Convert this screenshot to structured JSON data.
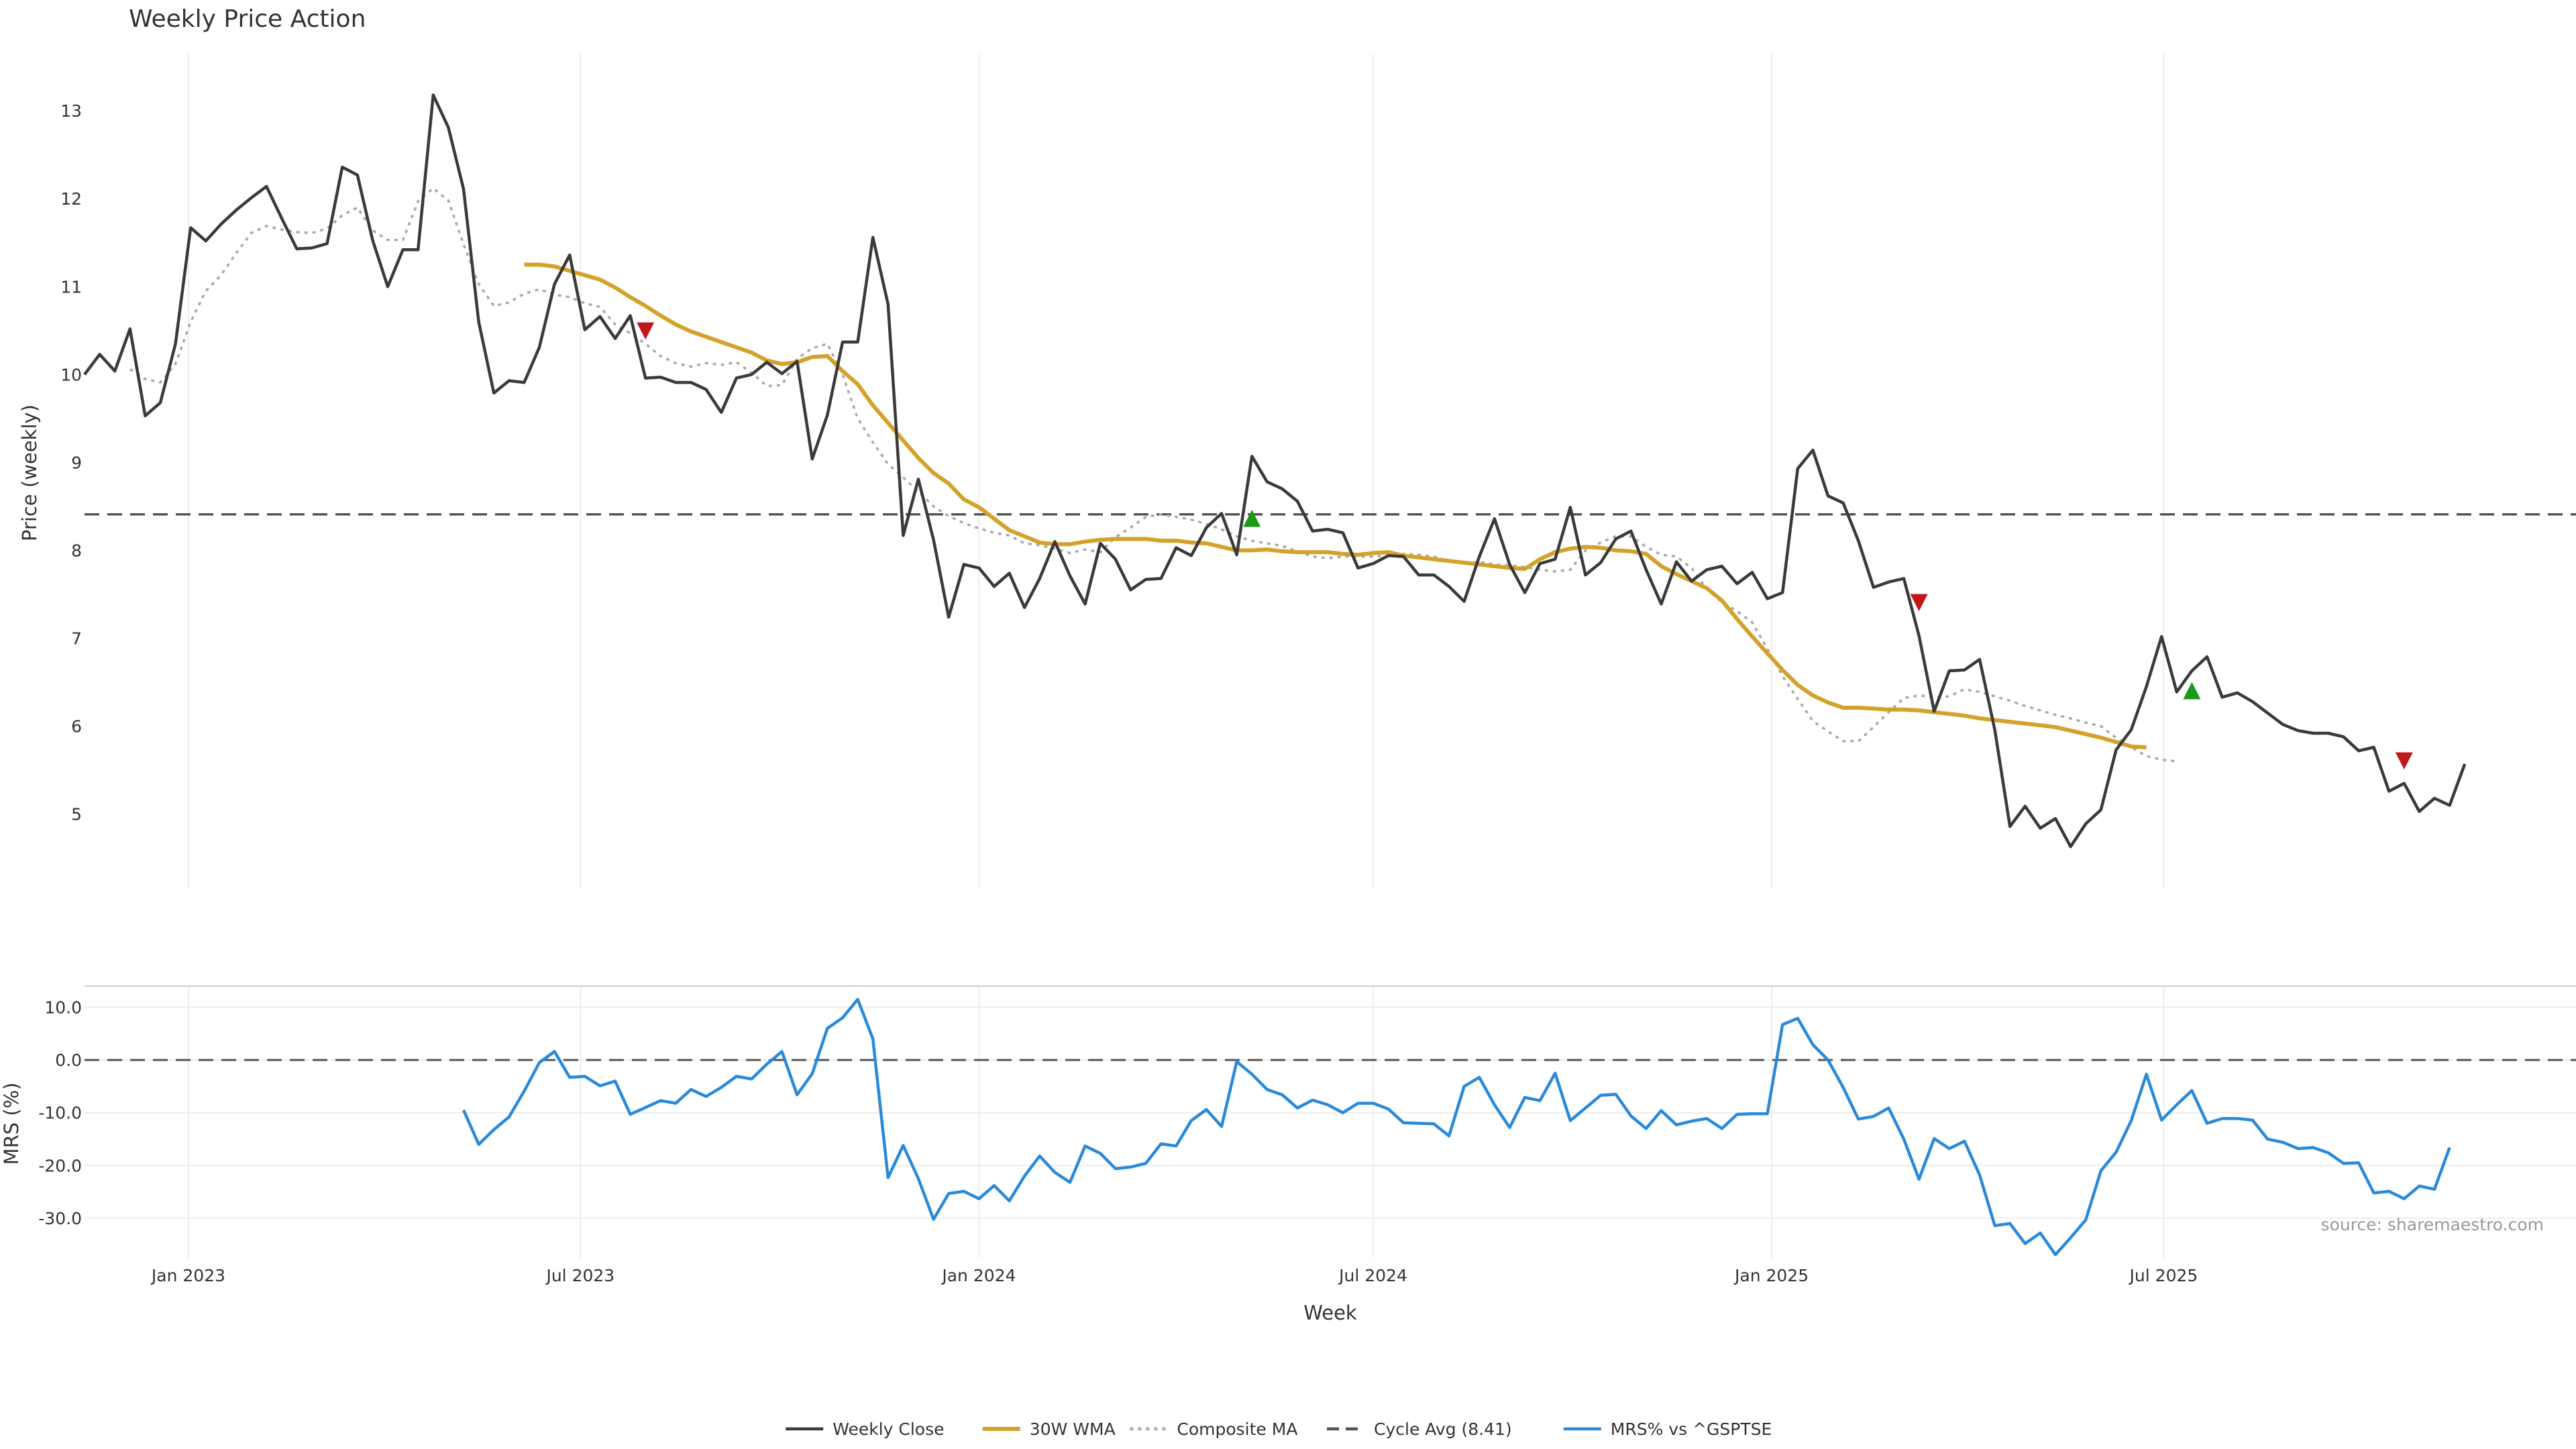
{
  "chart_data": {
    "type": "line",
    "title": "Weekly Price Action",
    "source": "source: sharemaestro.com",
    "xlabel": "Week",
    "x_ticks": [
      "Jan 2023",
      "Jul 2023",
      "Jan 2024",
      "Jul 2024",
      "Jan 2025",
      "Jul 2025"
    ],
    "x_start": "2022-11-14",
    "x_range": [
      "2022-11-14",
      "2025-11-24"
    ],
    "colors": {
      "close": "#3a3a3a",
      "wma": "#d4a22a",
      "composite": "#aaaaaa",
      "cycle": "#555555",
      "mrs": "#2a8ad8",
      "signal_up": "#1a9a1a",
      "signal_down": "#c0161c",
      "grid": "#e8e8e8"
    },
    "price_panel": {
      "ylabel": "Price (weekly)",
      "ylim": [
        4.15,
        13.65
      ],
      "y_ticks": [
        5,
        6,
        7,
        8,
        9,
        10,
        11,
        12,
        13
      ],
      "cycle_avg": 8.41,
      "series": [
        {
          "name": "Weekly Close",
          "key": "close",
          "start_index": 0,
          "values": [
            10.0,
            10.23,
            10.04,
            10.52,
            9.53,
            9.68,
            10.35,
            11.67,
            11.52,
            11.71,
            11.87,
            12.01,
            12.14,
            11.78,
            11.43,
            11.44,
            11.49,
            12.36,
            12.27,
            11.53,
            11.0,
            11.42,
            11.42,
            13.18,
            12.81,
            12.11,
            10.6,
            9.79,
            9.93,
            9.91,
            10.31,
            11.03,
            11.36,
            10.51,
            10.66,
            10.41,
            10.67,
            9.96,
            9.97,
            9.91,
            9.91,
            9.83,
            9.57,
            9.96,
            10.0,
            10.14,
            10.01,
            10.15,
            9.04,
            9.54,
            10.37,
            10.37,
            11.56,
            10.8,
            8.17,
            8.81,
            8.12,
            7.24,
            7.84,
            7.8,
            7.59,
            7.74,
            7.35,
            7.68,
            8.1,
            7.71,
            7.39,
            8.08,
            7.9,
            7.55,
            7.67,
            7.68,
            8.03,
            7.94,
            8.26,
            8.42,
            7.95,
            9.07,
            8.78,
            8.7,
            8.56,
            8.22,
            8.24,
            8.2,
            7.8,
            7.85,
            7.94,
            7.93,
            7.72,
            7.72,
            7.59,
            7.42,
            7.93,
            8.36,
            7.84,
            7.52,
            7.85,
            7.9,
            8.49,
            7.72,
            7.86,
            8.13,
            8.22,
            7.78,
            7.39,
            7.87,
            7.65,
            7.78,
            7.82,
            7.62,
            7.75,
            7.45,
            7.52,
            8.93,
            9.14,
            8.62,
            8.54,
            8.11,
            7.58,
            7.64,
            7.68,
            7.03,
            6.17,
            6.63,
            6.64,
            6.76,
            5.96,
            4.86,
            5.09,
            4.84,
            4.95,
            4.63,
            4.89,
            5.05,
            5.73,
            5.96,
            6.45,
            7.02,
            6.39,
            6.63,
            6.79,
            6.33,
            6.38,
            6.28,
            6.15,
            6.02,
            5.95,
            5.92,
            5.92,
            5.88,
            5.72,
            5.76,
            5.26,
            5.35,
            5.03,
            5.18,
            5.1,
            5.57
          ]
        },
        {
          "name": "Composite MA",
          "key": "composite",
          "start_index": 3,
          "values": [
            10.06,
            9.95,
            9.91,
            10.12,
            10.6,
            10.95,
            11.13,
            11.38,
            11.61,
            11.69,
            11.65,
            11.62,
            11.61,
            11.66,
            11.81,
            11.9,
            11.64,
            11.53,
            11.53,
            11.97,
            12.12,
            11.98,
            11.48,
            11.03,
            10.78,
            10.82,
            10.92,
            10.97,
            10.91,
            10.88,
            10.81,
            10.77,
            10.57,
            10.47,
            10.35,
            10.21,
            10.13,
            10.09,
            10.13,
            10.11,
            10.14,
            10.02,
            9.87,
            9.88,
            10.18,
            10.3,
            10.35,
            10.0,
            9.5,
            9.23,
            8.98,
            8.83,
            8.67,
            8.5,
            8.39,
            8.31,
            8.25,
            8.2,
            8.17,
            8.08,
            8.06,
            8.02,
            7.97,
            8.01,
            7.98,
            8.15,
            8.26,
            8.38,
            8.41,
            8.38,
            8.35,
            8.3,
            8.24,
            8.16,
            8.11,
            8.08,
            8.05,
            7.99,
            7.93,
            7.91,
            7.93,
            7.93,
            7.93,
            7.94,
            7.96,
            7.95,
            7.93,
            7.88,
            7.85,
            7.87,
            7.84,
            7.83,
            7.81,
            7.78,
            7.76,
            7.78,
            8.0,
            8.09,
            8.16,
            8.16,
            8.04,
            7.95,
            7.93,
            7.8,
            7.56,
            7.41,
            7.31,
            7.18,
            6.88,
            6.57,
            6.31,
            6.06,
            5.94,
            5.83,
            5.83,
            5.99,
            6.16,
            6.32,
            6.35,
            6.33,
            6.34,
            6.42,
            6.39,
            6.34,
            6.29,
            6.23,
            6.18,
            6.13,
            6.09,
            6.04,
            6.0,
            5.87,
            5.76,
            5.66,
            5.62,
            5.6
          ]
        },
        {
          "name": "30W WMA",
          "key": "wma",
          "start_index": 29,
          "values": [
            11.25,
            11.25,
            11.23,
            11.18,
            11.13,
            11.08,
            10.99,
            10.88,
            10.78,
            10.67,
            10.57,
            10.49,
            10.43,
            10.37,
            10.31,
            10.25,
            10.16,
            10.12,
            10.14,
            10.2,
            10.21,
            10.04,
            9.89,
            9.65,
            9.45,
            9.25,
            9.05,
            8.88,
            8.76,
            8.58,
            8.49,
            8.36,
            8.23,
            8.16,
            8.09,
            8.07,
            8.07,
            8.1,
            8.12,
            8.13,
            8.13,
            8.13,
            8.11,
            8.11,
            8.09,
            8.08,
            8.04,
            8.0,
            8.0,
            8.01,
            7.99,
            7.98,
            7.98,
            7.98,
            7.96,
            7.95,
            7.97,
            7.98,
            7.94,
            7.92,
            7.9,
            7.88,
            7.86,
            7.84,
            7.82,
            7.8,
            7.79,
            7.9,
            7.98,
            8.02,
            8.04,
            8.03,
            8.0,
            7.99,
            7.96,
            7.82,
            7.73,
            7.65,
            7.57,
            7.43,
            7.22,
            7.02,
            6.83,
            6.64,
            6.47,
            6.35,
            6.27,
            6.21,
            6.21,
            6.2,
            6.19,
            6.19,
            6.18,
            6.16,
            6.14,
            6.12,
            6.09,
            6.07,
            6.05,
            6.03,
            6.01,
            5.99,
            5.95,
            5.91,
            5.87,
            5.82,
            5.77,
            5.76
          ]
        }
      ],
      "signals": [
        {
          "type": "down",
          "index": 37,
          "value": 10.52
        },
        {
          "type": "up",
          "index": 77,
          "value": 8.34
        },
        {
          "type": "down",
          "index": 121,
          "value": 7.43
        },
        {
          "type": "up",
          "index": 139,
          "value": 6.38
        },
        {
          "type": "down",
          "index": 153,
          "value": 5.63
        }
      ]
    },
    "mrs_panel": {
      "ylabel": "MRS (%)",
      "ylim": [
        -37.5,
        14
      ],
      "y_ticks": [
        10.0,
        0.0,
        -10.0,
        -20.0,
        -30.0
      ],
      "y_tick_labels": [
        "10.0",
        "0.0",
        "-10.0",
        "-20.0",
        "-30.0"
      ],
      "zero_line": 0,
      "series": [
        {
          "name": "MRS% vs ^GSPTSE",
          "key": "mrs",
          "start_index": 25,
          "values": [
            -9.5,
            -16,
            -13.2,
            -10.8,
            -5.9,
            -0.5,
            1.6,
            -3.3,
            -3.1,
            -4.9,
            -4.0,
            -10.3,
            -9.0,
            -7.7,
            -8.2,
            -5.6,
            -6.9,
            -5.2,
            -3.1,
            -3.6,
            -0.8,
            1.6,
            -6.6,
            -2.6,
            6.0,
            8.0,
            11.5,
            4.0,
            -22.3,
            -16.2,
            -22.5,
            -30.2,
            -25.3,
            -24.9,
            -26.3,
            -23.8,
            -26.7,
            -22.0,
            -18.2,
            -21.3,
            -23.2,
            -16.3,
            -17.7,
            -20.6,
            -20.3,
            -19.6,
            -15.9,
            -16.3,
            -11.5,
            -9.4,
            -12.6,
            -0.3,
            -2.7,
            -5.6,
            -6.6,
            -9.1,
            -7.6,
            -8.5,
            -10.0,
            -8.2,
            -8.2,
            -9.3,
            -11.9,
            -12.0,
            -12.1,
            -14.4,
            -5.0,
            -3.3,
            -8.5,
            -12.8,
            -7.1,
            -7.7,
            -2.5,
            -11.5,
            -9.1,
            -6.7,
            -6.5,
            -10.6,
            -13.0,
            -9.6,
            -12.3,
            -11.6,
            -11.1,
            -13.0,
            -10.3,
            -10.2,
            -10.2,
            6.7,
            7.9,
            2.9,
            0.0,
            -5.2,
            -11.2,
            -10.7,
            -9.1,
            -15.0,
            -22.6,
            -14.9,
            -16.8,
            -15.4,
            -21.8,
            -31.4,
            -31.0,
            -34.8,
            -32.8,
            -36.9,
            -33.7,
            -30.3,
            -21.0,
            -17.5,
            -11.5,
            -2.7,
            -11.4,
            -8.5,
            -5.8,
            -12.0,
            -11.1,
            -11.1,
            -11.4,
            -15.0,
            -15.6,
            -16.8,
            -16.6,
            -17.6,
            -19.6,
            -19.5,
            -25.2,
            -24.9,
            -26.3,
            -23.9,
            -24.5,
            -16.6
          ]
        }
      ]
    },
    "legend": {
      "placement": "bottom-center",
      "items": [
        {
          "label": "Weekly Close",
          "key": "close",
          "dash": "solid"
        },
        {
          "label": "30W WMA",
          "key": "wma",
          "dash": "solid"
        },
        {
          "label": "Composite MA",
          "key": "composite",
          "dash": "dotted"
        },
        {
          "label": "Cycle Avg (8.41)",
          "key": "cycle",
          "dash": "dashed"
        },
        {
          "label": "MRS% vs ^GSPTSE",
          "key": "mrs",
          "dash": "solid"
        }
      ]
    }
  }
}
